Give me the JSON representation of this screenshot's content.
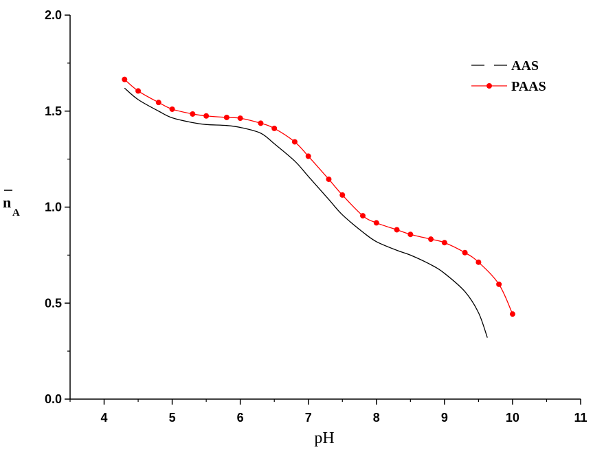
{
  "chart_data": {
    "type": "line",
    "xlabel": "pH",
    "ylabel": "n",
    "ylabel_subscript": "A",
    "xlim": [
      3.5,
      11
    ],
    "ylim": [
      0,
      2.0
    ],
    "x_ticks": [
      4,
      5,
      6,
      7,
      8,
      9,
      10,
      11
    ],
    "y_ticks": [
      0.0,
      0.5,
      1.0,
      1.5,
      2.0
    ],
    "x_tick_labels": [
      "4",
      "5",
      "6",
      "7",
      "8",
      "9",
      "10",
      "11"
    ],
    "y_tick_labels": [
      "0.0",
      "0.5",
      "1.0",
      "1.5",
      "2.0"
    ],
    "grid": false,
    "legend_position": "top-right",
    "series": [
      {
        "name": "AAS",
        "color": "#000000",
        "marker": "none",
        "x": [
          4.3,
          4.5,
          4.8,
          5.0,
          5.3,
          5.5,
          5.8,
          6.0,
          6.3,
          6.5,
          6.8,
          7.0,
          7.3,
          7.5,
          7.8,
          8.0,
          8.3,
          8.5,
          8.8,
          9.0,
          9.3,
          9.5,
          9.63
        ],
        "y": [
          1.62,
          1.56,
          1.5,
          1.465,
          1.44,
          1.43,
          1.425,
          1.415,
          1.385,
          1.33,
          1.24,
          1.16,
          1.04,
          0.96,
          0.87,
          0.82,
          0.775,
          0.75,
          0.7,
          0.655,
          0.56,
          0.45,
          0.32
        ]
      },
      {
        "name": "PAAS",
        "color": "#ff0000",
        "marker": "circle",
        "x": [
          4.3,
          4.5,
          4.8,
          5.0,
          5.3,
          5.5,
          5.8,
          6.0,
          6.3,
          6.5,
          6.8,
          7.0,
          7.3,
          7.5,
          7.8,
          8.0,
          8.3,
          8.5,
          8.8,
          9.0,
          9.3,
          9.5,
          9.8,
          10.0
        ],
        "y": [
          1.665,
          1.605,
          1.545,
          1.51,
          1.485,
          1.475,
          1.467,
          1.463,
          1.437,
          1.41,
          1.34,
          1.265,
          1.145,
          1.063,
          0.955,
          0.918,
          0.882,
          0.858,
          0.833,
          0.815,
          0.763,
          0.713,
          0.598,
          0.443
        ]
      }
    ]
  }
}
